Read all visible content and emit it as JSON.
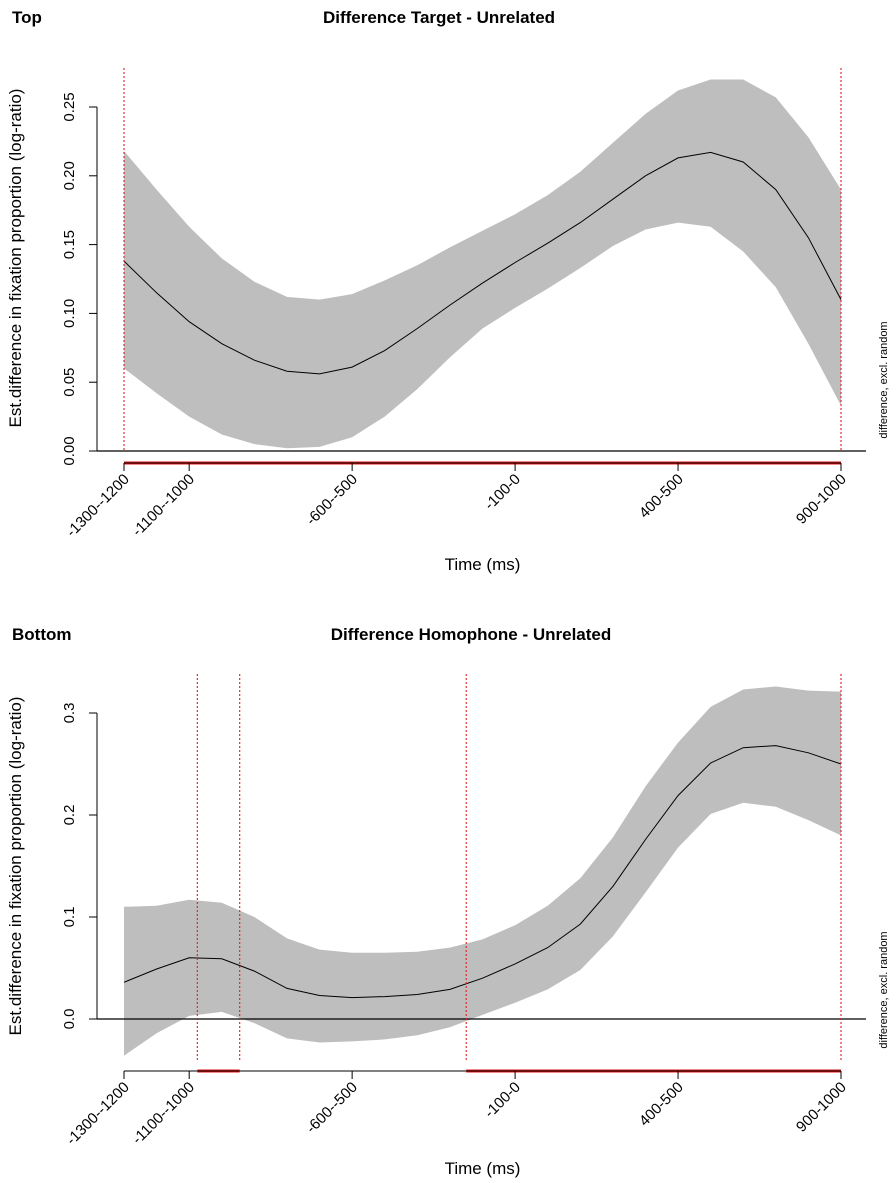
{
  "chart_data": [
    {
      "type": "line",
      "panel_label": "Top",
      "title": "Difference Target - Unrelated",
      "xlabel": "Time (ms)",
      "ylabel": "Est.difference in fixation proportion (log-ratio)",
      "side_label": "difference, excl. random",
      "x_ticks": [
        -1300,
        -1100,
        -600,
        -100,
        400,
        900
      ],
      "x_tick_labels": [
        "-1300--1200",
        "-1100--1000",
        "-600--500",
        "-100-0",
        "400-500",
        "900-1000"
      ],
      "y_ticks": [
        0.0,
        0.05,
        0.1,
        0.15,
        0.2,
        0.25
      ],
      "y_tick_labels": [
        "0.00",
        "0.05",
        "0.10",
        "0.15",
        "0.20",
        "0.25"
      ],
      "xlim": [
        -1300,
        900
      ],
      "ylim": [
        0,
        0.25
      ],
      "zero_line": 0,
      "significance_vlines": [
        -1300,
        900
      ],
      "significance_intervals": [
        [
          -1300,
          900
        ]
      ],
      "series": [
        {
          "x": [
            -1300,
            -1200,
            -1100,
            -1000,
            -900,
            -800,
            -700,
            -600,
            -500,
            -400,
            -300,
            -200,
            -100,
            0,
            100,
            200,
            300,
            400,
            500,
            600,
            700,
            800,
            900
          ],
          "estimate": [
            0.138,
            0.115,
            0.094,
            0.078,
            0.066,
            0.058,
            0.056,
            0.061,
            0.073,
            0.089,
            0.106,
            0.122,
            0.137,
            0.151,
            0.166,
            0.183,
            0.2,
            0.213,
            0.217,
            0.21,
            0.19,
            0.155,
            0.11
          ],
          "lower": [
            0.06,
            0.042,
            0.025,
            0.012,
            0.005,
            0.002,
            0.003,
            0.01,
            0.025,
            0.045,
            0.068,
            0.089,
            0.104,
            0.118,
            0.133,
            0.149,
            0.161,
            0.166,
            0.163,
            0.145,
            0.119,
            0.078,
            0.033
          ],
          "upper": [
            0.218,
            0.19,
            0.163,
            0.14,
            0.123,
            0.112,
            0.11,
            0.114,
            0.124,
            0.135,
            0.148,
            0.16,
            0.172,
            0.186,
            0.203,
            0.224,
            0.245,
            0.262,
            0.27,
            0.27,
            0.257,
            0.228,
            0.19
          ]
        }
      ]
    },
    {
      "type": "line",
      "panel_label": "Bottom",
      "title": "Difference Homophone - Unrelated",
      "xlabel": "Time (ms)",
      "ylabel": "Est.difference in fixation proportion (log-ratio)",
      "side_label": "difference, excl. random",
      "x_ticks": [
        -1300,
        -1100,
        -600,
        -100,
        400,
        900
      ],
      "x_tick_labels": [
        "-1300--1200",
        "-1100--1000",
        "-600--500",
        "-100-0",
        "400-500",
        "900-1000"
      ],
      "y_ticks": [
        0.0,
        0.1,
        0.2,
        0.3
      ],
      "y_tick_labels": [
        "0.0",
        "0.1",
        "0.2",
        "0.3"
      ],
      "xlim": [
        -1300,
        900
      ],
      "ylim": [
        -0.05,
        0.3
      ],
      "zero_line": 0,
      "significance_vlines": [
        -1075,
        -945,
        -250,
        900
      ],
      "significance_intervals": [
        [
          -1075,
          -945
        ],
        [
          -250,
          900
        ]
      ],
      "series": [
        {
          "x": [
            -1300,
            -1200,
            -1100,
            -1000,
            -900,
            -800,
            -700,
            -600,
            -500,
            -400,
            -300,
            -200,
            -100,
            0,
            100,
            200,
            300,
            400,
            500,
            600,
            700,
            800,
            900
          ],
          "estimate": [
            0.036,
            0.049,
            0.06,
            0.059,
            0.047,
            0.03,
            0.023,
            0.021,
            0.022,
            0.024,
            0.029,
            0.04,
            0.054,
            0.07,
            0.093,
            0.13,
            0.176,
            0.219,
            0.251,
            0.266,
            0.268,
            0.261,
            0.25
          ],
          "lower": [
            -0.036,
            -0.014,
            0.003,
            0.007,
            -0.004,
            -0.019,
            -0.023,
            -0.022,
            -0.02,
            -0.016,
            -0.008,
            0.004,
            0.016,
            0.029,
            0.048,
            0.081,
            0.124,
            0.168,
            0.201,
            0.212,
            0.208,
            0.195,
            0.18
          ],
          "upper": [
            0.11,
            0.111,
            0.117,
            0.114,
            0.1,
            0.079,
            0.068,
            0.065,
            0.065,
            0.066,
            0.07,
            0.078,
            0.092,
            0.111,
            0.138,
            0.178,
            0.228,
            0.271,
            0.306,
            0.323,
            0.326,
            0.322,
            0.321
          ]
        }
      ]
    }
  ]
}
